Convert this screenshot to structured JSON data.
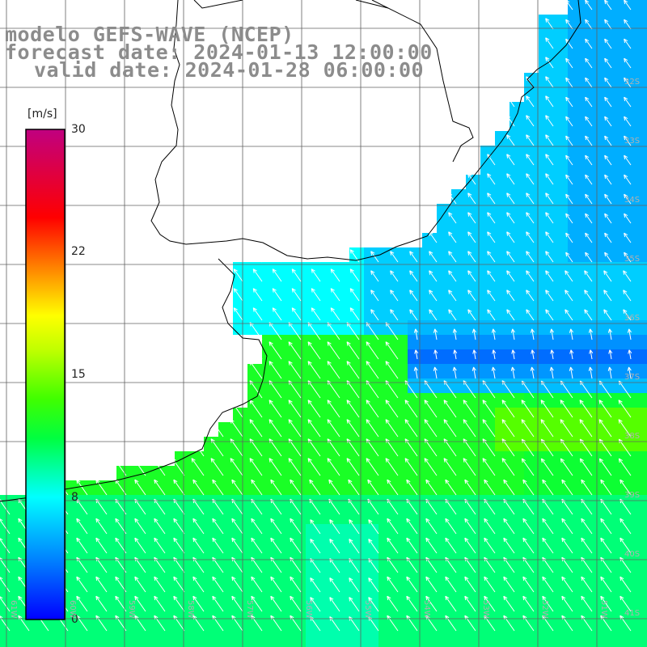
{
  "title": {
    "line1": "modelo GEFS-WAVE (NCEP)",
    "line2": "forecast date: 2024-01-13 12:00:00",
    "line3": "valid date: 2024-01-28 06:00:00"
  },
  "colorbar": {
    "unit": "[m/s]",
    "ticks": [
      "30",
      "22",
      "15",
      "8",
      "0"
    ],
    "colors": [
      "#0000ff",
      "#0080ff",
      "#00ffff",
      "#00ff40",
      "#80ff00",
      "#ffff00",
      "#ff8000",
      "#ff0000",
      "#c00080"
    ]
  },
  "lat_labels": [
    "32S",
    "33S",
    "34S",
    "35S",
    "36S",
    "37S",
    "38S",
    "39S",
    "40S",
    "41S"
  ],
  "lon_labels": [
    "61W",
    "60W",
    "59W",
    "58W",
    "57W",
    "56W",
    "55W",
    "54W",
    "53W",
    "52W",
    "51W"
  ],
  "field": {
    "variable": "wind speed",
    "units": "m/s",
    "range": [
      0,
      30
    ],
    "regions": {
      "north_shelf_speed": 6,
      "plata_estuary_speed": 10,
      "southern_shelf_speed": 12,
      "offshore_south_speed": 10,
      "deep_blue_band_speed": 3
    },
    "arrow_direction": "from south-east"
  }
}
